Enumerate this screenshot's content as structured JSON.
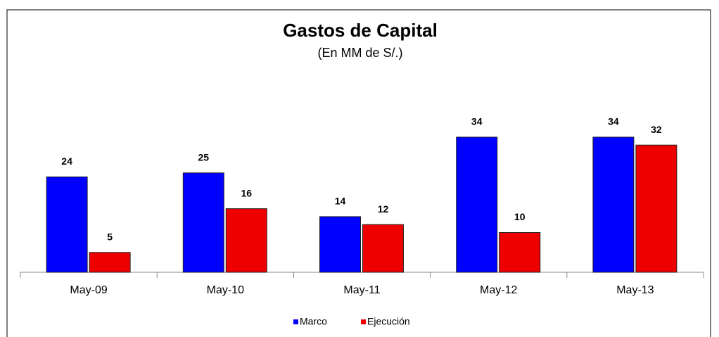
{
  "chart_data": {
    "type": "bar",
    "title": "Gastos de Capital",
    "subtitle": "(En MM de S/.)",
    "categories": [
      "May-09",
      "May-10",
      "May-11",
      "May-12",
      "May-13"
    ],
    "series": [
      {
        "name": "Marco",
        "color": "#0000ff",
        "values": [
          24,
          25,
          14,
          34,
          34
        ]
      },
      {
        "name": "Ejecución",
        "color": "#ee0000",
        "values": [
          5,
          16,
          12,
          10,
          32
        ]
      }
    ],
    "legend": "bottom"
  }
}
